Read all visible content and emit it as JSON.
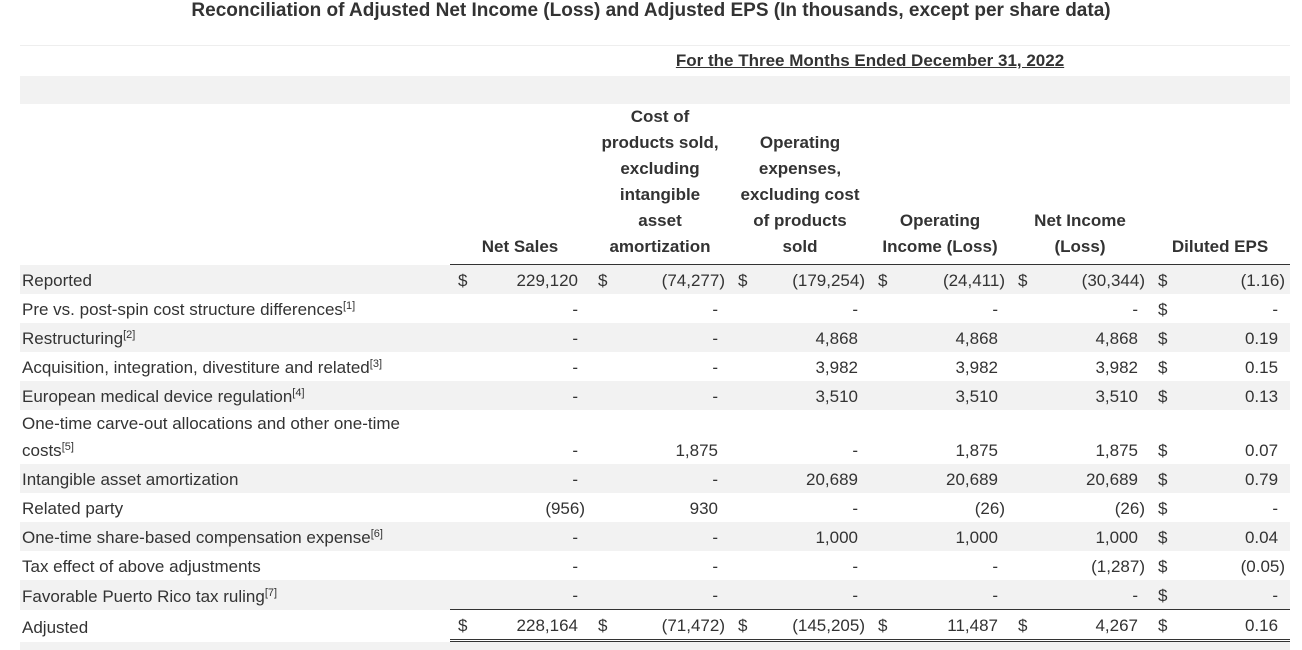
{
  "title": "Reconciliation of Adjusted Net Income (Loss) and Adjusted EPS (In thousands, except per share data)",
  "table": {
    "period": "For the Three Months Ended December 31, 2022",
    "columns": [
      "Net Sales",
      "Cost of products sold, excluding intangible asset amortization",
      "Operating expenses, excluding cost of products sold",
      "Operating Income (Loss)",
      "Net Income (Loss)",
      "Diluted EPS"
    ],
    "rows": [
      {
        "label": "Reported",
        "cells": [
          {
            "currency": "$",
            "value": "229,120"
          },
          {
            "currency": "$",
            "value": "(74,277)"
          },
          {
            "currency": "$",
            "value": "(179,254)"
          },
          {
            "currency": "$",
            "value": "(24,411)"
          },
          {
            "currency": "$",
            "value": "(30,344)"
          },
          {
            "currency": "$",
            "value": "(1.16)"
          }
        ]
      },
      {
        "label": "Pre vs. post-spin cost structure differences",
        "note": "[1]",
        "cells": [
          "-",
          "-",
          "-",
          "-",
          "-",
          {
            "currency": "$",
            "value": "-"
          }
        ]
      },
      {
        "label": "Restructuring",
        "note": "[2]",
        "cells": [
          "-",
          "-",
          "4,868",
          "4,868",
          "4,868",
          {
            "currency": "$",
            "value": "0.19"
          }
        ]
      },
      {
        "label": "Acquisition, integration, divestiture and related",
        "note": "[3]",
        "cells": [
          "-",
          "-",
          "3,982",
          "3,982",
          "3,982",
          {
            "currency": "$",
            "value": "0.15"
          }
        ]
      },
      {
        "label": "European medical device regulation",
        "note": "[4]",
        "cells": [
          "-",
          "-",
          "3,510",
          "3,510",
          "3,510",
          {
            "currency": "$",
            "value": "0.13"
          }
        ]
      },
      {
        "label": "One-time carve-out allocations and other one-time costs",
        "note": "[5]",
        "cells": [
          "-",
          "1,875",
          "-",
          "1,875",
          "1,875",
          {
            "currency": "$",
            "value": "0.07"
          }
        ]
      },
      {
        "label": "Intangible asset amortization",
        "cells": [
          "-",
          "-",
          "20,689",
          "20,689",
          "20,689",
          {
            "currency": "$",
            "value": "0.79"
          }
        ]
      },
      {
        "label": "Related party",
        "cells": [
          "(956)",
          "930",
          "-",
          "(26)",
          "(26)",
          {
            "currency": "$",
            "value": "-"
          }
        ]
      },
      {
        "label": "One-time share-based compensation expense",
        "note": "[6]",
        "cells": [
          "-",
          "-",
          "1,000",
          "1,000",
          "1,000",
          {
            "currency": "$",
            "value": "0.04"
          }
        ]
      },
      {
        "label": "Tax effect of above adjustments",
        "cells": [
          "-",
          "-",
          "-",
          "-",
          "(1,287)",
          {
            "currency": "$",
            "value": "(0.05)"
          }
        ]
      },
      {
        "label": "Favorable Puerto Rico tax ruling",
        "note": "[7]",
        "cells": [
          "-",
          "-",
          "-",
          "-",
          "-",
          {
            "currency": "$",
            "value": "-"
          }
        ]
      },
      {
        "label": "Adjusted",
        "cells": [
          {
            "currency": "$",
            "value": "228,164"
          },
          {
            "currency": "$",
            "value": "(71,472)"
          },
          {
            "currency": "$",
            "value": "(145,205)"
          },
          {
            "currency": "$",
            "value": "11,487"
          },
          {
            "currency": "$",
            "value": "4,267"
          },
          {
            "currency": "$",
            "value": "0.16"
          }
        ]
      }
    ]
  }
}
